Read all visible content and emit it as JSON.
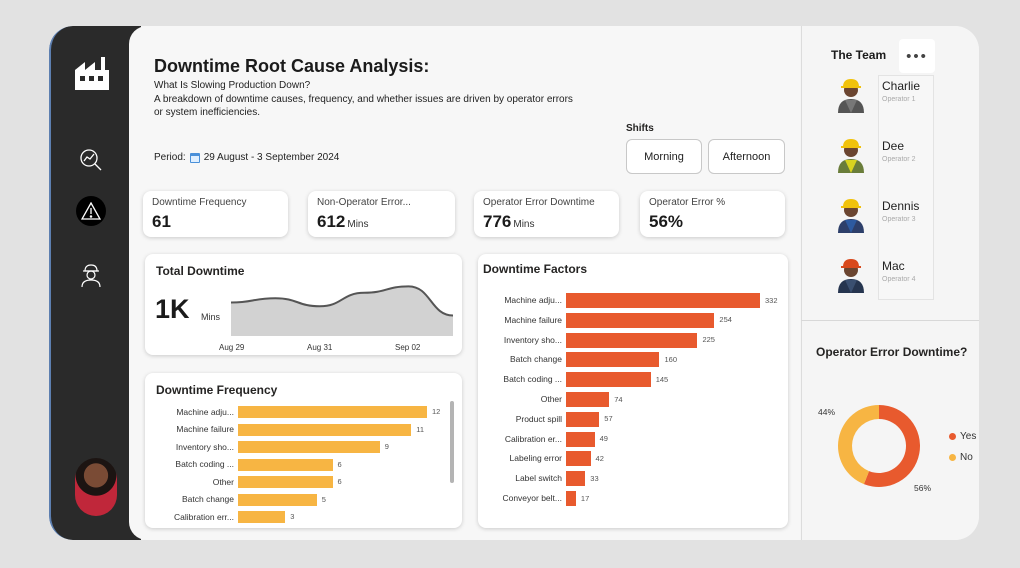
{
  "header": {
    "title": "Downtime Root Cause Analysis:",
    "subtitle": "What Is Slowing Production Down?",
    "description": "A breakdown of downtime causes, frequency, and whether issues are driven by operator errors or system inefficiencies.",
    "period_label": "Period:",
    "period_value": "29 August - 3 September 2024"
  },
  "shifts": {
    "label": "Shifts",
    "options": [
      "Morning",
      "Afternoon"
    ]
  },
  "kpis": [
    {
      "label": "Downtime Frequency",
      "value": "61",
      "unit": ""
    },
    {
      "label": "Non-Operator Error...",
      "value": "612",
      "unit": "Mins"
    },
    {
      "label": "Operator Error Downtime",
      "value": "776",
      "unit": "Mins"
    },
    {
      "label": "Operator Error %",
      "value": "56%",
      "unit": ""
    }
  ],
  "total_downtime": {
    "title": "Total Downtime",
    "value": "1K",
    "unit": "Mins",
    "x_ticks": [
      "Aug 29",
      "Aug 31",
      "Sep 02"
    ]
  },
  "downtime_frequency": {
    "title": "Downtime Frequency",
    "color": "#f7b543"
  },
  "downtime_factors": {
    "title": "Downtime Factors",
    "color": "#e85a2e"
  },
  "team": {
    "title": "The Team",
    "more_label": "•••",
    "members": [
      {
        "name": "Charlie",
        "role": "Operator 1"
      },
      {
        "name": "Dee",
        "role": "Operator 2"
      },
      {
        "name": "Dennis",
        "role": "Operator 3"
      },
      {
        "name": "Mac",
        "role": "Operator 4"
      }
    ]
  },
  "operator_error": {
    "title": "Operator Error Downtime?",
    "legend": [
      {
        "label": "Yes",
        "color": "#e85a2e"
      },
      {
        "label": "No",
        "color": "#f7b543"
      }
    ],
    "labels": {
      "yes": "56%",
      "no": "44%"
    }
  },
  "sidebar": {
    "icons": [
      "factory-icon",
      "analytics-icon",
      "warning-icon",
      "worker-icon"
    ]
  },
  "chart_data": [
    {
      "type": "area",
      "title": "Total Downtime",
      "x": [
        "Aug 29",
        "Aug 30",
        "Aug 31",
        "Sep 01",
        "Sep 02",
        "Sep 03"
      ],
      "values": [
        0.62,
        0.7,
        0.55,
        0.8,
        0.92,
        0.38
      ],
      "ylim": [
        0,
        1
      ]
    },
    {
      "type": "bar",
      "title": "Downtime Frequency",
      "orientation": "horizontal",
      "categories": [
        "Machine adju...",
        "Machine failure",
        "Inventory sho...",
        "Batch coding ...",
        "Other",
        "Batch change",
        "Calibration err..."
      ],
      "values": [
        12,
        11,
        9,
        6,
        6,
        5,
        3
      ]
    },
    {
      "type": "bar",
      "title": "Downtime Factors",
      "orientation": "horizontal",
      "categories": [
        "Machine adju...",
        "Machine failure",
        "Inventory sho...",
        "Batch change",
        "Batch coding ...",
        "Other",
        "Product spill",
        "Calibration er...",
        "Labeling error",
        "Label switch",
        "Conveyor belt..."
      ],
      "values": [
        332,
        254,
        225,
        160,
        145,
        74,
        57,
        49,
        42,
        33,
        17
      ]
    },
    {
      "type": "pie",
      "title": "Operator Error Downtime?",
      "categories": [
        "Yes",
        "No"
      ],
      "values": [
        56,
        44
      ]
    }
  ]
}
